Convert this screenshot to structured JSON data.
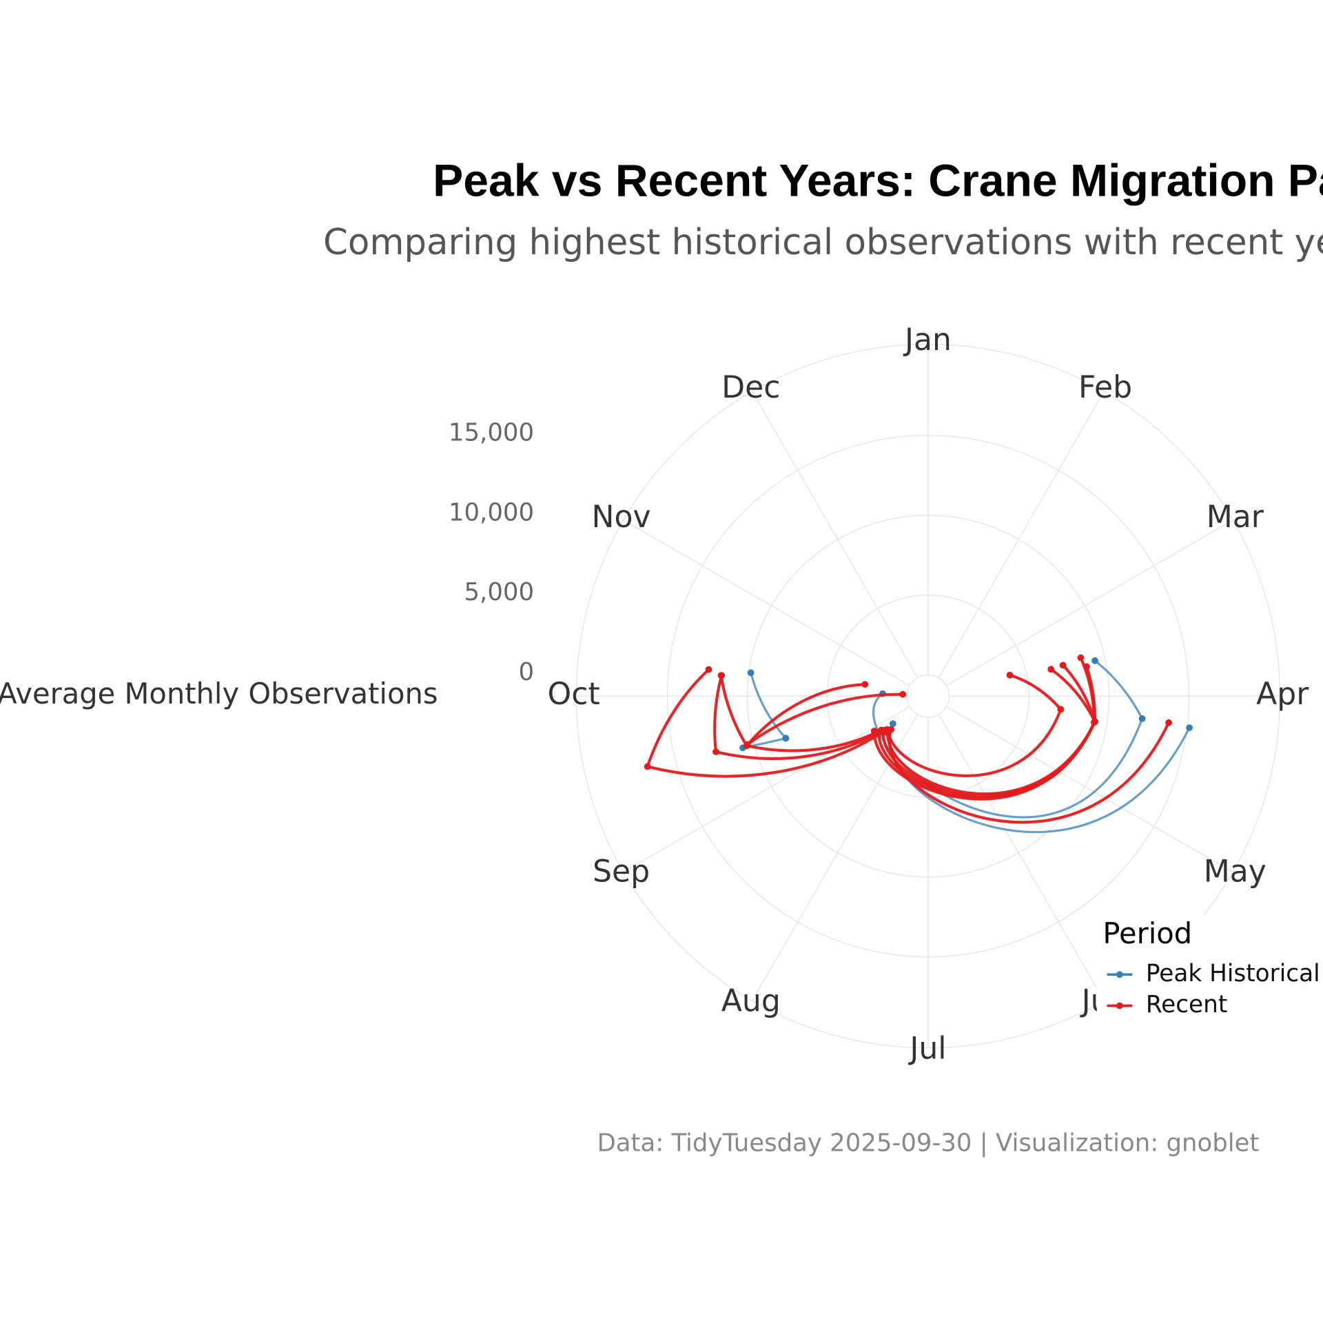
{
  "chart_data": {
    "type": "polar_line",
    "title": "Peak vs Recent Years: Crane Migration Patterns",
    "subtitle": "Comparing highest historical observations with recent years",
    "caption": "Data: TidyTuesday 2025-09-30 | Visualization: gnoblet",
    "y_label": "Average Monthly Observations",
    "categories": [
      "Jan",
      "Feb",
      "Mar",
      "Apr",
      "May",
      "Jun",
      "Jul",
      "Aug",
      "Sep",
      "Oct",
      "Nov",
      "Dec"
    ],
    "xlim": [
      1,
      13
    ],
    "ylim": [
      0,
      20700
    ],
    "yticks": [
      0,
      {
        "value": 5000,
        "label": "5,000"
      },
      {
        "value": 10000,
        "label": "10,000"
      },
      {
        "value": 15000,
        "label": "15,000"
      }
    ],
    "grid": true,
    "legend_title": "Period",
    "legend_position": "bottom-right",
    "series": [
      {
        "name": "Peak Historical",
        "color": "#377eb8",
        "lines": [
          {
            "x": [
              4.23,
              8.73
            ],
            "values": [
              15150,
              1480
            ]
          },
          {
            "x": [
              3.6,
              4.2,
              10.1
            ],
            "values": [
              9350,
              12150,
              1530
            ]
          },
          {
            "x": [
              10.25,
              9.45
            ],
            "values": [
              9870,
              7970
            ]
          },
          {
            "x": [
              9.48,
              9.45
            ],
            "values": [
              10720,
              7970
            ]
          }
        ]
      },
      {
        "name": "Recent",
        "color": "#e41a1c",
        "lines": [
          {
            "x": [
              3.52,
              4.19,
              8.67
            ],
            "values": [
              3960,
              7020,
              1970
            ]
          },
          {
            "x": [
              3.59,
              4.29,
              8.6
            ],
            "values": [
              6550,
              9240,
              2100
            ]
          },
          {
            "x": [
              3.57,
              4.29,
              8.7
            ],
            "values": [
              7340,
              9240,
              2300
            ]
          },
          {
            "x": [
              3.65,
              4.29,
              8.8
            ],
            "values": [
              8770,
              9240,
              2500
            ]
          },
          {
            "x": [
              3.53,
              4.3,
              8.9
            ],
            "values": [
              8530,
              9200,
              2700
            ]
          },
          {
            "x": [
              4.21,
              8.6
            ],
            "values": [
              13830,
              1800
            ]
          },
          {
            "x": [
              8.7,
              9.53,
              10.23
            ],
            "values": [
              2000,
              16790,
              12510
            ]
          },
          {
            "x": [
              10.19,
              9.51,
              8.75
            ],
            "values": [
              11670,
              12410,
              2200
            ]
          },
          {
            "x": [
              10.19,
              9.49,
              8.8
            ],
            "values": [
              11700,
              10450,
              2300
            ]
          },
          {
            "x": [
              10.35,
              9.49
            ],
            "values": [
              2700,
              10450
            ]
          },
          {
            "x": [
              10.13,
              9.5
            ],
            "values": [
              270,
              10400
            ]
          }
        ]
      }
    ]
  }
}
